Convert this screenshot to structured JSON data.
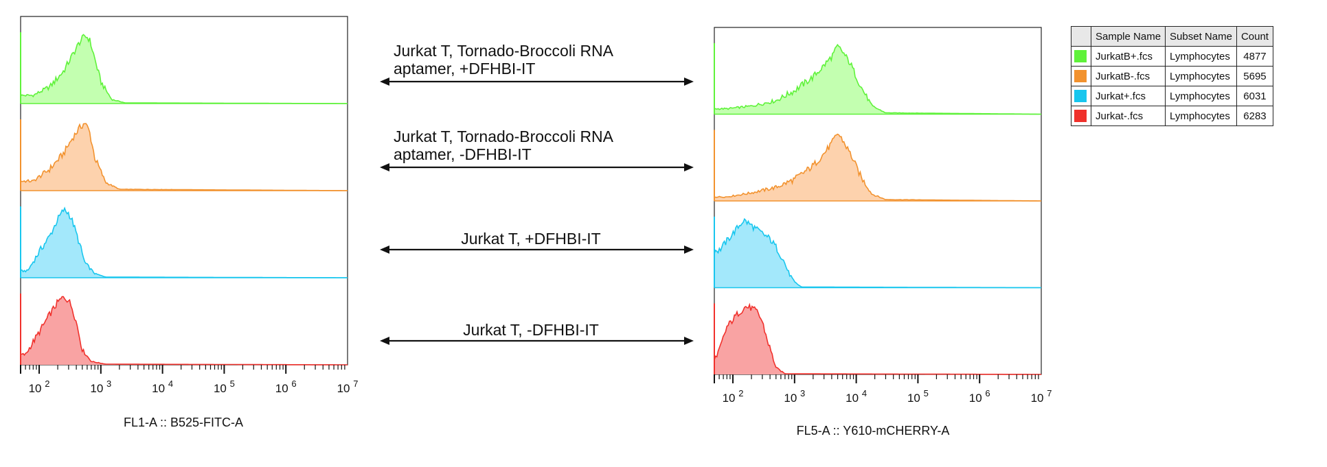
{
  "chart_data": [
    {
      "type": "area",
      "xlabel": "FL1-A :: B525-FITC-A",
      "x_scale": "log",
      "xlim": [
        50,
        10000000
      ],
      "x_tick_labels": [
        "10^2",
        "10^3",
        "10^4",
        "10^5",
        "10^6",
        "10^7"
      ],
      "series": [
        {
          "name": "JurkatB+.fcs",
          "color": "#5ff23a",
          "fill": "#c3ffb0",
          "x": [
            80,
            150,
            250,
            350,
            450,
            550,
            650,
            750,
            1000,
            1500,
            2500,
            10000000
          ],
          "y": [
            0.12,
            0.25,
            0.48,
            0.72,
            0.9,
            1.0,
            0.95,
            0.75,
            0.32,
            0.06,
            0.01,
            0
          ]
        },
        {
          "name": "JurkatB-.fcs",
          "color": "#f2922e",
          "fill": "#fdd2ad",
          "x": [
            80,
            150,
            250,
            350,
            450,
            550,
            650,
            800,
            1200,
            2000,
            10000000
          ],
          "y": [
            0.14,
            0.32,
            0.55,
            0.78,
            0.92,
            1.0,
            0.88,
            0.48,
            0.12,
            0.02,
            0
          ]
        },
        {
          "name": "Jurkat+.fcs",
          "color": "#18c6ee",
          "fill": "#a3e8fb",
          "x": [
            65,
            100,
            150,
            200,
            250,
            300,
            350,
            450,
            550,
            800,
            1200,
            10000000
          ],
          "y": [
            0.1,
            0.38,
            0.62,
            0.86,
            1.0,
            0.95,
            0.82,
            0.5,
            0.22,
            0.06,
            0.01,
            0
          ]
        },
        {
          "name": "Jurkat-.fcs",
          "color": "#f0312c",
          "fill": "#f9a3a3",
          "x": [
            60,
            100,
            150,
            200,
            250,
            300,
            350,
            420,
            500,
            700,
            1200,
            10000000
          ],
          "y": [
            0.15,
            0.48,
            0.75,
            0.92,
            1.0,
            0.95,
            0.82,
            0.55,
            0.22,
            0.05,
            0.01,
            0
          ]
        }
      ]
    },
    {
      "type": "area",
      "xlabel": "FL5-A :: Y610-mCHERRY-A",
      "x_scale": "log",
      "xlim": [
        50,
        10000000
      ],
      "x_tick_labels": [
        "10^2",
        "10^3",
        "10^4",
        "10^5",
        "10^6",
        "10^7"
      ],
      "series": [
        {
          "name": "JurkatB+.fcs",
          "color": "#5ff23a",
          "fill": "#c3ffb0",
          "x": [
            80,
            200,
            500,
            1000,
            2000,
            3000,
            4000,
            5000,
            6000,
            8000,
            12000,
            18000,
            30000,
            10000000
          ],
          "y": [
            0.08,
            0.12,
            0.2,
            0.35,
            0.55,
            0.72,
            0.85,
            1.0,
            0.92,
            0.75,
            0.4,
            0.12,
            0.02,
            0
          ]
        },
        {
          "name": "JurkatB-.fcs",
          "color": "#f2922e",
          "fill": "#fdd2ad",
          "x": [
            80,
            200,
            500,
            1000,
            2000,
            3000,
            4000,
            5000,
            6000,
            8000,
            12000,
            18000,
            30000,
            10000000
          ],
          "y": [
            0.06,
            0.12,
            0.2,
            0.32,
            0.52,
            0.7,
            0.85,
            1.0,
            0.9,
            0.7,
            0.35,
            0.1,
            0.02,
            0
          ]
        },
        {
          "name": "Jurkat+.fcs",
          "color": "#18c6ee",
          "fill": "#a3e8fb",
          "x": [
            60,
            100,
            150,
            200,
            250,
            300,
            400,
            500,
            650,
            800,
            1000,
            1300,
            10000000
          ],
          "y": [
            0.55,
            0.8,
            1.0,
            0.92,
            0.85,
            0.8,
            0.72,
            0.6,
            0.42,
            0.22,
            0.08,
            0.01,
            0
          ]
        },
        {
          "name": "Jurkat-.fcs",
          "color": "#f0312c",
          "fill": "#f9a3a3",
          "x": [
            55,
            80,
            120,
            160,
            200,
            250,
            300,
            350,
            420,
            500,
            700,
            10000000
          ],
          "y": [
            0.25,
            0.7,
            0.9,
            1.0,
            0.98,
            0.92,
            0.78,
            0.55,
            0.32,
            0.1,
            0.01,
            0
          ]
        }
      ]
    }
  ],
  "annotations": [
    {
      "lines": [
        "Jurkat T, Tornado-Broccoli RNA",
        "aptamer, +DFHBI-IT"
      ]
    },
    {
      "lines": [
        "Jurkat T, Tornado-Broccoli RNA",
        "aptamer, -DFHBI-IT"
      ]
    },
    {
      "lines": [
        "Jurkat T, +DFHBI-IT"
      ]
    },
    {
      "lines": [
        "Jurkat T, -DFHBI-IT"
      ]
    }
  ],
  "legend": {
    "headers": [
      "Sample Name",
      "Subset Name",
      "Count"
    ],
    "rows": [
      {
        "color": "#5ff23a",
        "sample": "JurkatB+.fcs",
        "subset": "Lymphocytes",
        "count": "4877"
      },
      {
        "color": "#f2922e",
        "sample": "JurkatB-.fcs",
        "subset": "Lymphocytes",
        "count": "5695"
      },
      {
        "color": "#18c6ee",
        "sample": "Jurkat+.fcs",
        "subset": "Lymphocytes",
        "count": "6031"
      },
      {
        "color": "#f0312c",
        "sample": "Jurkat-.fcs",
        "subset": "Lymphocytes",
        "count": "6283"
      }
    ]
  }
}
